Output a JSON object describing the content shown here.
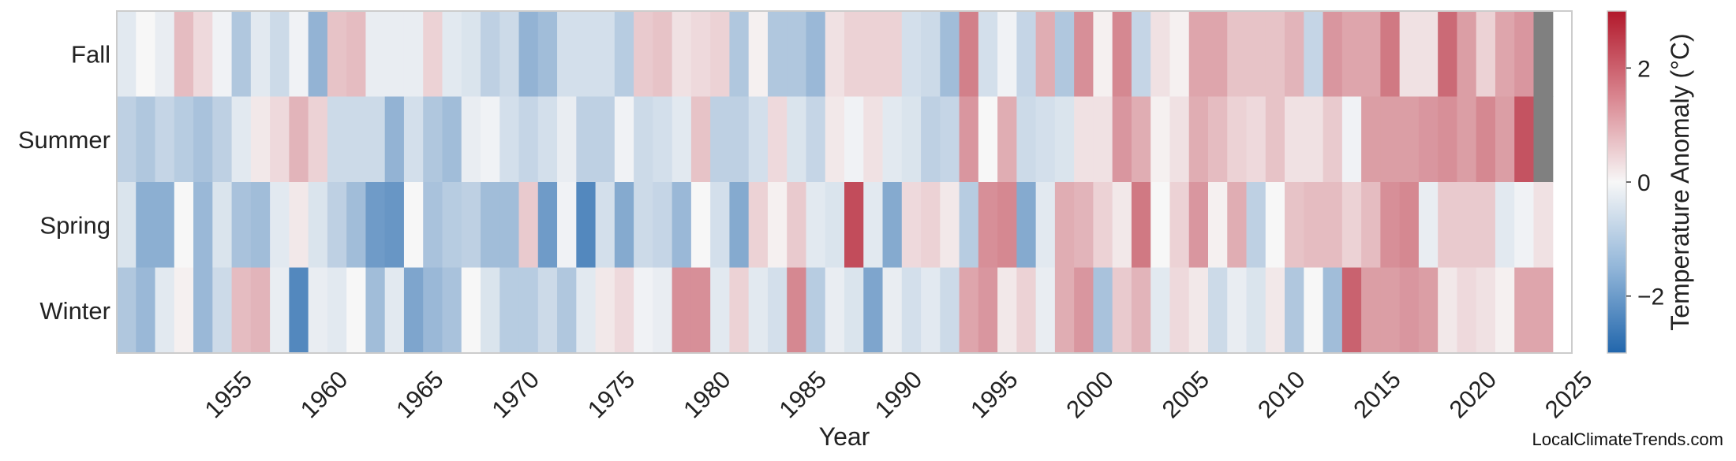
{
  "chart_data": {
    "type": "heatmap",
    "xlabel": "Year",
    "colorbar_label": "Temperature Anomaly (°C)",
    "colorbar_ticks": [
      -2,
      0,
      2
    ],
    "colorbar_range": [
      -3,
      3
    ],
    "colorscale": {
      "low": "#2166ac",
      "mid": "#f7f7f7",
      "high": "#b2182b",
      "missing": "#808080"
    },
    "x_start": 1950,
    "x_end": 2025,
    "x_tick_labels": [
      "1955",
      "1960",
      "1965",
      "1970",
      "1975",
      "1980",
      "1985",
      "1990",
      "1995",
      "2000",
      "2005",
      "2010",
      "2015",
      "2020",
      "2025"
    ],
    "rows": [
      {
        "label": "Fall",
        "values": [
          -0.3,
          0.0,
          -0.2,
          0.8,
          0.4,
          -0.1,
          -1.0,
          -0.3,
          -0.6,
          -0.1,
          -1.4,
          0.7,
          0.8,
          -0.2,
          -0.2,
          -0.2,
          0.5,
          -0.3,
          -0.4,
          -0.8,
          -0.6,
          -1.4,
          -1.2,
          -0.5,
          -0.5,
          -0.5,
          -0.9,
          0.6,
          0.7,
          0.3,
          0.4,
          0.5,
          -1.0,
          0.1,
          -1.0,
          -1.0,
          -1.3,
          0.3,
          0.5,
          0.5,
          0.5,
          -0.5,
          -0.6,
          -1.2,
          1.6,
          -0.5,
          -0.1,
          -0.7,
          1.0,
          -1.0,
          1.4,
          0.1,
          1.5,
          -0.7,
          0.3,
          0.1,
          1.1,
          1.1,
          0.7,
          0.7,
          0.7,
          0.9,
          -0.7,
          1.3,
          1.1,
          1.1,
          1.7,
          0.3,
          0.3,
          1.9,
          1.2,
          0.5,
          1.1,
          1.3,
          null
        ]
      },
      {
        "label": "Summer",
        "values": [
          -0.8,
          -1.0,
          -0.7,
          -0.9,
          -1.1,
          -0.8,
          -0.3,
          0.2,
          0.4,
          0.9,
          0.5,
          -0.6,
          -0.6,
          -0.6,
          -1.4,
          -0.5,
          -1.0,
          -1.2,
          -0.2,
          -0.1,
          -0.5,
          -0.7,
          -0.5,
          -0.2,
          -0.8,
          -0.8,
          -0.1,
          -0.6,
          -0.5,
          -0.3,
          0.7,
          -0.8,
          -0.8,
          -0.5,
          0.4,
          -0.4,
          -0.7,
          0.2,
          -0.1,
          0.3,
          -0.3,
          -0.4,
          -0.8,
          -0.7,
          1.3,
          0.0,
          1.0,
          -0.6,
          -0.5,
          -0.4,
          0.3,
          0.3,
          1.3,
          1.0,
          0.1,
          0.3,
          1.0,
          0.8,
          0.5,
          0.4,
          0.7,
          0.3,
          0.3,
          0.6,
          -0.1,
          1.2,
          1.2,
          1.2,
          1.3,
          1.4,
          1.2,
          1.5,
          1.2,
          2.2,
          null
        ]
      },
      {
        "label": "Spring",
        "values": [
          -0.4,
          -1.5,
          -1.5,
          0.0,
          -1.3,
          -0.4,
          -1.1,
          -1.2,
          -0.3,
          0.2,
          -0.4,
          -0.8,
          -1.2,
          -1.9,
          -2.0,
          0.0,
          -1.1,
          -0.9,
          -0.8,
          -1.2,
          -1.2,
          0.6,
          -1.9,
          -0.1,
          -2.3,
          -0.5,
          -1.6,
          -0.6,
          -0.7,
          -1.3,
          0.0,
          -0.5,
          -1.6,
          0.5,
          0.1,
          0.6,
          -0.3,
          -0.4,
          2.3,
          -0.3,
          -1.6,
          0.4,
          0.5,
          0.2,
          -0.9,
          1.4,
          1.5,
          -1.6,
          -0.3,
          1.0,
          0.9,
          0.5,
          0.2,
          1.7,
          0.0,
          0.5,
          1.3,
          0.1,
          1.0,
          -0.8,
          0.0,
          0.7,
          0.8,
          0.8,
          0.5,
          0.8,
          1.4,
          1.5,
          -0.2,
          0.6,
          0.6,
          0.6,
          -0.3,
          -0.1,
          0.3
        ]
      },
      {
        "label": "Winter",
        "values": [
          -1.0,
          -1.3,
          -0.3,
          0.1,
          -1.3,
          -0.6,
          0.8,
          0.9,
          -0.2,
          -2.3,
          -0.2,
          -0.3,
          0.0,
          -1.2,
          -0.3,
          -1.7,
          -1.3,
          -1.1,
          0.0,
          -0.4,
          -0.9,
          -0.9,
          -0.6,
          -1.0,
          -0.3,
          0.2,
          0.4,
          -0.1,
          -0.2,
          1.4,
          1.4,
          -0.3,
          0.5,
          -0.3,
          -0.5,
          1.5,
          -0.9,
          -0.2,
          -0.4,
          -1.7,
          -0.2,
          -0.5,
          -0.3,
          -0.6,
          1.1,
          1.3,
          0.2,
          0.5,
          -0.2,
          1.0,
          1.3,
          -1.1,
          0.6,
          0.9,
          -0.3,
          0.4,
          0.2,
          -0.6,
          -0.2,
          -0.4,
          0.2,
          -1.0,
          0.0,
          -1.2,
          2.0,
          1.2,
          1.2,
          1.3,
          1.2,
          0.2,
          0.4,
          0.3,
          0.1,
          1.1,
          1.1
        ]
      }
    ]
  },
  "watermark": "LocalClimateTrends.com"
}
